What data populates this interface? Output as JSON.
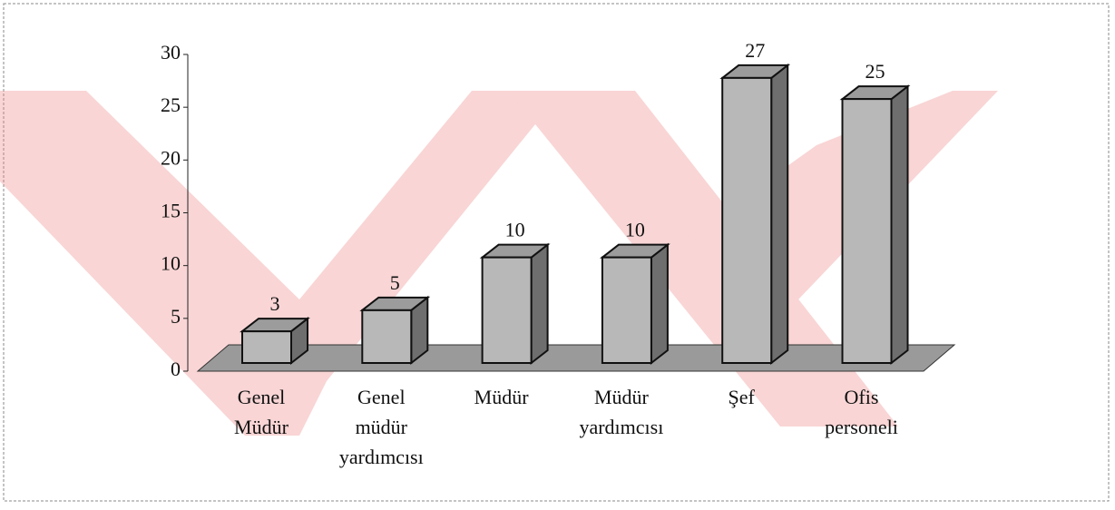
{
  "chart_data": {
    "type": "bar3d",
    "categories": [
      "Genel Müdür",
      "Genel müdür yardımcısı",
      "Müdür",
      "Müdür yardımcısı",
      "Şef",
      "Ofis personeli"
    ],
    "values": [
      3,
      5,
      10,
      10,
      27,
      25
    ],
    "color": "#b8b8b8",
    "ylim": [
      0,
      30
    ],
    "yticks": [
      0,
      5,
      10,
      15,
      20,
      25,
      30
    ]
  }
}
